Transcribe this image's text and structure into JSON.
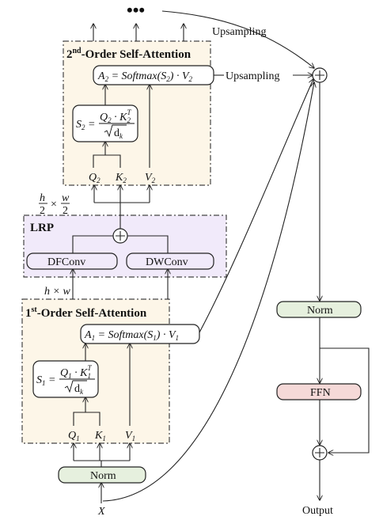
{
  "title_second_order": {
    "pre": "2",
    "sup": "nd",
    "post": "-Order Self-Attention"
  },
  "title_first_order": {
    "pre": "1",
    "sup": "st",
    "post": "-Order Self-Attention"
  },
  "lrp_label": "LRP",
  "dfconv_label": "DFConv",
  "dwconv_label": "DWConv",
  "norm_label": "Norm",
  "ffn_label": "FFN",
  "upsampling_label": "Upsampling",
  "output_label": "Output",
  "input_label": "X",
  "ellipsis": "•••",
  "size_full": "h × w",
  "size_half": {
    "h": "h",
    "w": "w",
    "den": "2",
    "times": "×"
  },
  "formula_A": {
    "lhs": "A",
    "eq": " = Softmax(",
    "s": "S",
    "mid": ") · ",
    "v": "V"
  },
  "formula_S": {
    "lhs": "S",
    "eq": " =",
    "q": "Q",
    "dot": " · ",
    "k": "K",
    "kt": "T",
    "d": "d",
    "dk": "k"
  },
  "index_second": "2",
  "index_first": "1",
  "q_label": "Q",
  "k_label": "K",
  "v_label": "V"
}
